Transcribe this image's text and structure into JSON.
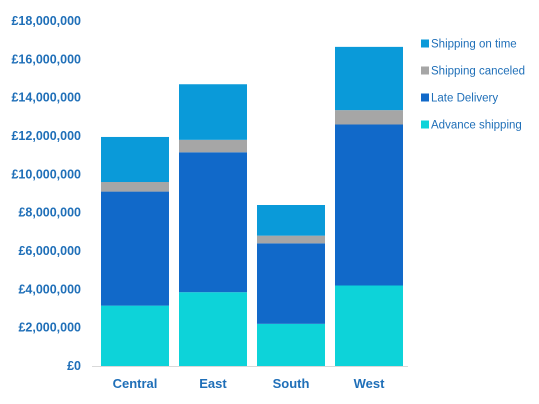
{
  "chart_data": {
    "type": "bar",
    "stacked": true,
    "categories": [
      "Central",
      "East",
      "South",
      "West"
    ],
    "series": [
      {
        "name": "Advance shipping",
        "color": "#0dd3d9",
        "values": [
          3150000,
          3850000,
          2200000,
          4200000
        ]
      },
      {
        "name": "Late Delivery",
        "color": "#1169c9",
        "values": [
          5950000,
          7300000,
          4200000,
          8400000
        ]
      },
      {
        "name": "Shipping canceled",
        "color": "#a6a6a6",
        "values": [
          500000,
          650000,
          400000,
          750000
        ]
      },
      {
        "name": "Shipping on time",
        "color": "#0a9ad9",
        "values": [
          2350000,
          2900000,
          1600000,
          3300000
        ]
      }
    ],
    "legend_order": [
      "Shipping on time",
      "Shipping canceled",
      "Late Delivery",
      "Advance shipping"
    ],
    "ylim": [
      0,
      18000000
    ],
    "y_tick_step": 2000000,
    "y_tick_labels": [
      "£0",
      "£2,000,000",
      "£4,000,000",
      "£6,000,000",
      "£8,000,000",
      "£10,000,000",
      "£12,000,000",
      "£14,000,000",
      "£16,000,000",
      "£18,000,000"
    ],
    "title": "",
    "xlabel": "",
    "ylabel": "",
    "grid": false,
    "legend_position": "right"
  },
  "colors": {
    "text": "#1f6fb8",
    "axis": "#d9d9d9",
    "background": "#ffffff"
  }
}
